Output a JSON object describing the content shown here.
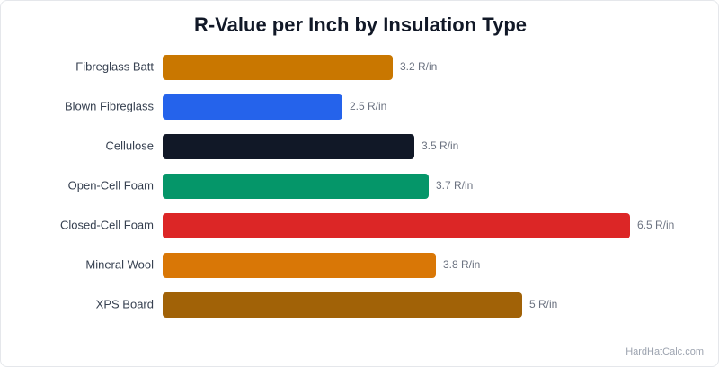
{
  "chart_data": {
    "type": "bar",
    "orientation": "horizontal",
    "title": "R-Value per Inch by Insulation Type",
    "xlabel": "",
    "ylabel": "",
    "xlim": [
      0,
      6.5
    ],
    "grid": false,
    "value_suffix": " R/in",
    "categories": [
      "Fibreglass Batt",
      "Blown Fibreglass",
      "Cellulose",
      "Open-Cell Foam",
      "Closed-Cell Foam",
      "Mineral Wool",
      "XPS Board"
    ],
    "values": [
      3.2,
      2.5,
      3.5,
      3.7,
      6.5,
      3.8,
      5
    ],
    "colors": [
      "#c97700",
      "#2563eb",
      "#111827",
      "#059669",
      "#dc2626",
      "#d97706",
      "#a16207"
    ]
  },
  "watermark": "HardHatCalc.com"
}
